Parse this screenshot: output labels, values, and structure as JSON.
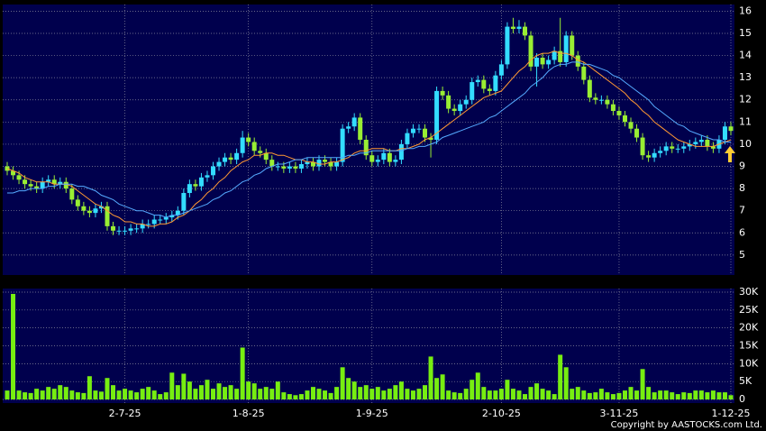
{
  "chart_data": [
    {
      "type": "candlestick",
      "categories": [
        null,
        null,
        null,
        null,
        null,
        null,
        null,
        null,
        null,
        null,
        null,
        null,
        null,
        null,
        null,
        null,
        null,
        null,
        null,
        null,
        "2-7-25",
        null,
        null,
        null,
        null,
        null,
        null,
        null,
        null,
        null,
        null,
        null,
        null,
        null,
        null,
        null,
        null,
        null,
        null,
        null,
        null,
        "1-8-25",
        null,
        null,
        null,
        null,
        null,
        null,
        null,
        null,
        null,
        null,
        null,
        null,
        null,
        null,
        null,
        null,
        null,
        null,
        null,
        null,
        "1-9-25",
        null,
        null,
        null,
        null,
        null,
        null,
        null,
        null,
        null,
        null,
        null,
        null,
        null,
        null,
        null,
        null,
        null,
        null,
        null,
        null,
        null,
        "2-10-25",
        null,
        null,
        null,
        null,
        null,
        null,
        null,
        null,
        null,
        null,
        null,
        null,
        null,
        null,
        null,
        null,
        null,
        null,
        null,
        "3-11-25",
        null,
        null,
        null,
        null,
        null,
        null,
        null,
        null,
        null,
        null,
        null,
        null,
        null,
        null,
        null,
        null,
        null,
        null,
        "1-12-25"
      ],
      "open": [
        9.0,
        8.8,
        8.6,
        8.4,
        8.2,
        8.1,
        8.0,
        8.3,
        8.4,
        8.2,
        8.3,
        8.0,
        7.5,
        7.2,
        7.0,
        6.9,
        7.1,
        7.2,
        6.3,
        6.1,
        6.1,
        6.1,
        6.2,
        6.2,
        6.4,
        6.4,
        6.6,
        6.6,
        6.7,
        6.8,
        7.0,
        7.8,
        8.2,
        8.1,
        8.5,
        8.6,
        9.0,
        9.2,
        9.4,
        9.3,
        9.6,
        10.3,
        10.1,
        9.7,
        9.6,
        9.3,
        9.0,
        9.0,
        8.9,
        9.0,
        8.9,
        9.1,
        9.2,
        9.0,
        9.3,
        9.2,
        9.0,
        9.2,
        10.7,
        10.8,
        11.2,
        10.2,
        9.5,
        9.2,
        9.3,
        9.6,
        9.2,
        9.3,
        10.0,
        10.5,
        10.7,
        10.7,
        10.3,
        10.2,
        12.4,
        12.2,
        11.6,
        11.5,
        11.8,
        12.0,
        12.8,
        12.9,
        12.5,
        12.4,
        13.1,
        13.6,
        15.3,
        15.2,
        15.3,
        14.9,
        13.5,
        13.9,
        13.6,
        13.8,
        14.2,
        13.7,
        14.9,
        14.0,
        13.5,
        12.9,
        12.1,
        12.0,
        12.0,
        11.8,
        11.5,
        11.3,
        11.0,
        10.7,
        10.3,
        9.5,
        9.4,
        9.6,
        9.7,
        9.9,
        9.8,
        9.8,
        9.9,
        10.0,
        10.1,
        10.2,
        9.9,
        9.8,
        10.2,
        10.8
      ],
      "high": [
        9.2,
        9.0,
        8.8,
        8.6,
        8.4,
        8.3,
        8.5,
        8.6,
        8.6,
        8.5,
        8.5,
        8.2,
        7.7,
        7.4,
        7.2,
        7.3,
        7.4,
        7.4,
        6.5,
        6.3,
        6.3,
        6.4,
        6.4,
        6.6,
        6.6,
        6.8,
        6.8,
        6.9,
        7.0,
        7.2,
        8.0,
        8.4,
        8.4,
        8.7,
        8.8,
        9.2,
        9.4,
        9.6,
        9.6,
        9.8,
        10.6,
        10.5,
        10.3,
        9.9,
        9.8,
        9.5,
        9.2,
        9.2,
        9.2,
        9.2,
        9.3,
        9.4,
        9.4,
        9.5,
        9.5,
        9.4,
        9.4,
        10.9,
        11.0,
        11.4,
        11.4,
        10.4,
        9.7,
        9.5,
        9.8,
        9.8,
        9.5,
        10.2,
        10.7,
        10.9,
        10.9,
        10.9,
        10.5,
        12.6,
        12.6,
        12.4,
        11.8,
        12.0,
        12.2,
        13.0,
        13.1,
        13.1,
        12.7,
        13.3,
        13.8,
        15.5,
        15.7,
        15.6,
        15.5,
        15.1,
        14.1,
        14.1,
        14.0,
        14.4,
        15.7,
        15.1,
        15.1,
        14.2,
        13.7,
        13.1,
        12.3,
        12.2,
        12.2,
        12.0,
        11.7,
        11.5,
        11.2,
        10.9,
        10.5,
        9.7,
        9.8,
        9.9,
        10.1,
        10.1,
        10.0,
        10.1,
        10.2,
        10.3,
        10.4,
        10.4,
        10.1,
        10.4,
        11.0,
        11.0
      ],
      "low": [
        8.6,
        8.4,
        8.2,
        8.0,
        7.9,
        7.8,
        7.8,
        8.1,
        8.0,
        8.0,
        7.8,
        7.3,
        7.0,
        6.8,
        6.7,
        6.7,
        6.9,
        6.1,
        5.9,
        5.9,
        5.9,
        5.9,
        6.0,
        6.0,
        6.2,
        6.2,
        6.4,
        6.4,
        6.5,
        6.6,
        6.8,
        7.6,
        7.9,
        7.9,
        8.3,
        8.4,
        8.8,
        9.0,
        9.1,
        9.1,
        9.4,
        9.9,
        9.5,
        9.4,
        9.1,
        8.8,
        8.8,
        8.7,
        8.7,
        8.7,
        8.7,
        8.9,
        8.8,
        8.8,
        9.0,
        8.8,
        8.8,
        9.0,
        10.5,
        10.6,
        10.0,
        9.3,
        9.0,
        9.0,
        9.1,
        9.0,
        9.0,
        9.1,
        9.8,
        10.3,
        10.5,
        10.1,
        9.4,
        10.0,
        12.0,
        11.4,
        11.3,
        11.3,
        11.6,
        11.8,
        12.6,
        12.3,
        12.2,
        12.2,
        12.9,
        13.4,
        15.0,
        15.0,
        14.7,
        13.3,
        12.6,
        13.4,
        13.4,
        13.6,
        13.5,
        13.5,
        13.8,
        13.3,
        12.7,
        11.9,
        11.8,
        11.8,
        11.6,
        11.3,
        11.1,
        10.8,
        10.5,
        10.1,
        9.3,
        9.2,
        9.2,
        9.4,
        9.5,
        9.6,
        9.6,
        9.6,
        9.7,
        9.8,
        9.9,
        9.7,
        9.6,
        9.6,
        10.0,
        10.4
      ],
      "close": [
        8.8,
        8.6,
        8.4,
        8.2,
        8.1,
        8.0,
        8.3,
        8.4,
        8.2,
        8.3,
        8.0,
        7.5,
        7.2,
        7.0,
        6.9,
        7.1,
        7.2,
        6.3,
        6.1,
        6.1,
        6.1,
        6.2,
        6.2,
        6.4,
        6.4,
        6.6,
        6.6,
        6.7,
        6.8,
        7.0,
        7.8,
        8.2,
        8.1,
        8.5,
        8.6,
        9.0,
        9.2,
        9.4,
        9.3,
        9.6,
        10.3,
        10.1,
        9.7,
        9.6,
        9.3,
        9.0,
        9.0,
        8.9,
        9.0,
        8.9,
        9.1,
        9.2,
        9.0,
        9.3,
        9.2,
        9.0,
        9.2,
        10.7,
        10.8,
        11.2,
        10.2,
        9.5,
        9.2,
        9.3,
        9.6,
        9.2,
        9.3,
        10.0,
        10.5,
        10.7,
        10.7,
        10.3,
        10.2,
        12.4,
        12.2,
        11.6,
        11.5,
        11.8,
        12.0,
        12.8,
        12.9,
        12.5,
        12.4,
        13.1,
        13.6,
        15.3,
        15.2,
        15.3,
        14.9,
        13.5,
        13.9,
        13.6,
        13.8,
        14.2,
        13.7,
        14.9,
        14.0,
        13.5,
        12.9,
        12.1,
        12.0,
        12.0,
        11.8,
        11.5,
        11.3,
        11.0,
        10.7,
        10.3,
        9.5,
        9.4,
        9.6,
        9.7,
        9.9,
        9.8,
        9.8,
        9.9,
        10.0,
        10.1,
        10.2,
        9.9,
        9.8,
        10.2,
        10.8,
        10.6
      ],
      "up_color": "#33ddff",
      "down_color": "#99ee33",
      "series": [
        {
          "color": "#ff9933",
          "values": [
            8.9,
            8.8,
            8.7,
            8.5,
            8.4,
            8.3,
            8.3,
            8.3,
            8.2,
            8.2,
            8.2,
            8.1,
            7.9,
            7.7,
            7.5,
            7.3,
            7.2,
            7.0,
            6.8,
            6.7,
            6.5,
            6.5,
            6.4,
            6.4,
            6.3,
            6.3,
            6.4,
            6.4,
            6.5,
            6.7,
            6.8,
            7.0,
            7.3,
            7.5,
            7.8,
            8.0,
            8.3,
            8.5,
            8.8,
            9.0,
            9.2,
            9.3,
            9.5,
            9.5,
            9.6,
            9.6,
            9.5,
            9.5,
            9.4,
            9.3,
            9.3,
            9.2,
            9.2,
            9.1,
            9.1,
            9.2,
            9.2,
            9.3,
            9.4,
            9.6,
            9.7,
            9.7,
            9.8,
            9.8,
            9.8,
            9.7,
            9.7,
            9.8,
            9.8,
            9.9,
            10.0,
            10.2,
            10.3,
            10.5,
            10.7,
            10.9,
            11.1,
            11.3,
            11.5,
            11.7,
            11.9,
            12.1,
            12.2,
            12.3,
            12.4,
            12.7,
            13.0,
            13.3,
            13.5,
            13.8,
            14.0,
            14.1,
            14.1,
            14.2,
            14.1,
            14.1,
            14.0,
            13.8,
            13.7,
            13.5,
            13.3,
            13.1,
            12.9,
            12.7,
            12.5,
            12.3,
            12.0,
            11.8,
            11.5,
            11.3,
            11.0,
            10.8,
            10.6,
            10.4,
            10.2,
            10.1,
            10.0,
            9.9,
            9.9,
            9.9,
            9.9,
            10.0,
            10.1,
            10.2
          ]
        },
        {
          "color": "#55aaff",
          "values": [
            7.8,
            7.8,
            7.9,
            7.9,
            8.0,
            8.0,
            8.0,
            8.1,
            8.1,
            8.2,
            8.2,
            8.2,
            8.1,
            8.1,
            8.0,
            7.9,
            7.7,
            7.6,
            7.5,
            7.3,
            7.2,
            7.1,
            7.0,
            7.0,
            6.9,
            6.8,
            6.8,
            6.7,
            6.8,
            6.8,
            6.9,
            7.0,
            7.1,
            7.2,
            7.3,
            7.5,
            7.6,
            7.8,
            7.9,
            8.1,
            8.3,
            8.4,
            8.6,
            8.7,
            8.9,
            9.0,
            9.1,
            9.1,
            9.2,
            9.3,
            9.3,
            9.4,
            9.4,
            9.4,
            9.4,
            9.4,
            9.4,
            9.4,
            9.5,
            9.5,
            9.6,
            9.6,
            9.7,
            9.7,
            9.7,
            9.7,
            9.7,
            9.7,
            9.8,
            9.8,
            9.9,
            9.9,
            10.0,
            10.1,
            10.3,
            10.4,
            10.5,
            10.6,
            10.7,
            10.8,
            10.9,
            11.0,
            11.2,
            11.3,
            11.5,
            11.7,
            11.9,
            12.1,
            12.3,
            12.6,
            12.8,
            13.0,
            13.3,
            13.5,
            13.6,
            13.6,
            13.7,
            13.7,
            13.6,
            13.6,
            13.5,
            13.4,
            13.3,
            13.1,
            13.0,
            12.8,
            12.6,
            12.4,
            12.2,
            12.0,
            11.7,
            11.5,
            11.3,
            11.1,
            10.9,
            10.8,
            10.6,
            10.5,
            10.4,
            10.3,
            10.2,
            10.2,
            10.1,
            10.1
          ]
        }
      ],
      "ylim": [
        4.1,
        16.3
      ],
      "yticks": [
        5,
        6,
        7,
        8,
        9,
        10,
        11,
        12,
        13,
        14,
        15,
        16
      ],
      "grid": true
    },
    {
      "type": "bar",
      "values": [
        2500,
        29500,
        2500,
        2000,
        1800,
        3000,
        2500,
        3500,
        3000,
        4000,
        3500,
        2500,
        2000,
        1800,
        6500,
        2500,
        2200,
        6000,
        4000,
        2500,
        3000,
        2500,
        2000,
        3000,
        3500,
        2500,
        1500,
        2000,
        7500,
        4000,
        7200,
        5000,
        3000,
        4000,
        5500,
        3000,
        4500,
        3500,
        4000,
        3000,
        14500,
        5000,
        4500,
        3000,
        3500,
        3000,
        5000,
        2000,
        1500,
        1200,
        1500,
        2500,
        3500,
        3000,
        2500,
        1800,
        3500,
        9000,
        6000,
        5000,
        3500,
        4000,
        3000,
        3500,
        2500,
        3000,
        4000,
        5000,
        3000,
        2500,
        3000,
        4000,
        12000,
        6000,
        7000,
        2500,
        2000,
        1800,
        3000,
        5500,
        7500,
        3500,
        2500,
        2500,
        3000,
        5500,
        3000,
        2500,
        1500,
        3500,
        4500,
        3000,
        2500,
        1500,
        12500,
        9000,
        3000,
        3500,
        2500,
        1800,
        2000,
        3000,
        2000,
        1500,
        1800,
        2500,
        3500,
        2500,
        8500,
        3500,
        2000,
        2500,
        2500,
        2000,
        1500,
        2000,
        1800,
        2500,
        2500,
        2000,
        2500,
        2000,
        2000,
        1200
      ],
      "color": "#77ee11",
      "ylim": [
        -1000,
        31000
      ],
      "yticks": [
        0,
        {
          "value": 5000,
          "label": "5K"
        },
        {
          "value": 10000,
          "label": "10K"
        },
        {
          "value": 15000,
          "label": "15K"
        },
        {
          "value": 20000,
          "label": "20K"
        },
        {
          "value": 25000,
          "label": "25K"
        },
        {
          "value": 30000,
          "label": "30K"
        }
      ],
      "grid": true
    }
  ],
  "copyright": "Copyright by AASTOCKS.com Ltd."
}
